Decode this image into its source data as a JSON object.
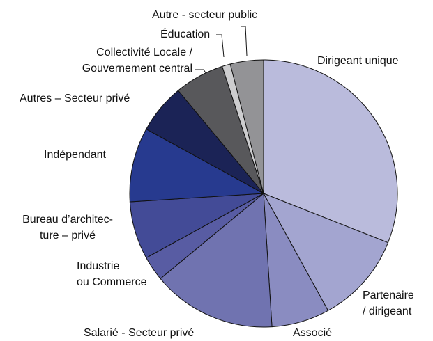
{
  "chart_data": {
    "type": "pie",
    "categories": [
      "Dirigeant unique",
      "Partenaire\n/ dirigeant",
      "Associé",
      "Salarié  - Secteur privé",
      "Industrie\nou Commerce",
      "Bureau d’architec-\nture – privé",
      "Indépendant",
      "Autres – Secteur privé",
      "Collectivité Locale /\nGouvernement central",
      "Éducation",
      "Autre - secteur public"
    ],
    "values": [
      31,
      11,
      7,
      15,
      3,
      7,
      9,
      6,
      6,
      1,
      4
    ],
    "colors": [
      "#babbdc",
      "#a3a5d0",
      "#8a8cc1",
      "#7073b0",
      "#585ca3",
      "#434b97",
      "#273a8f",
      "#1b2356",
      "#58585b",
      "#cdcdcf",
      "#939396"
    ]
  }
}
